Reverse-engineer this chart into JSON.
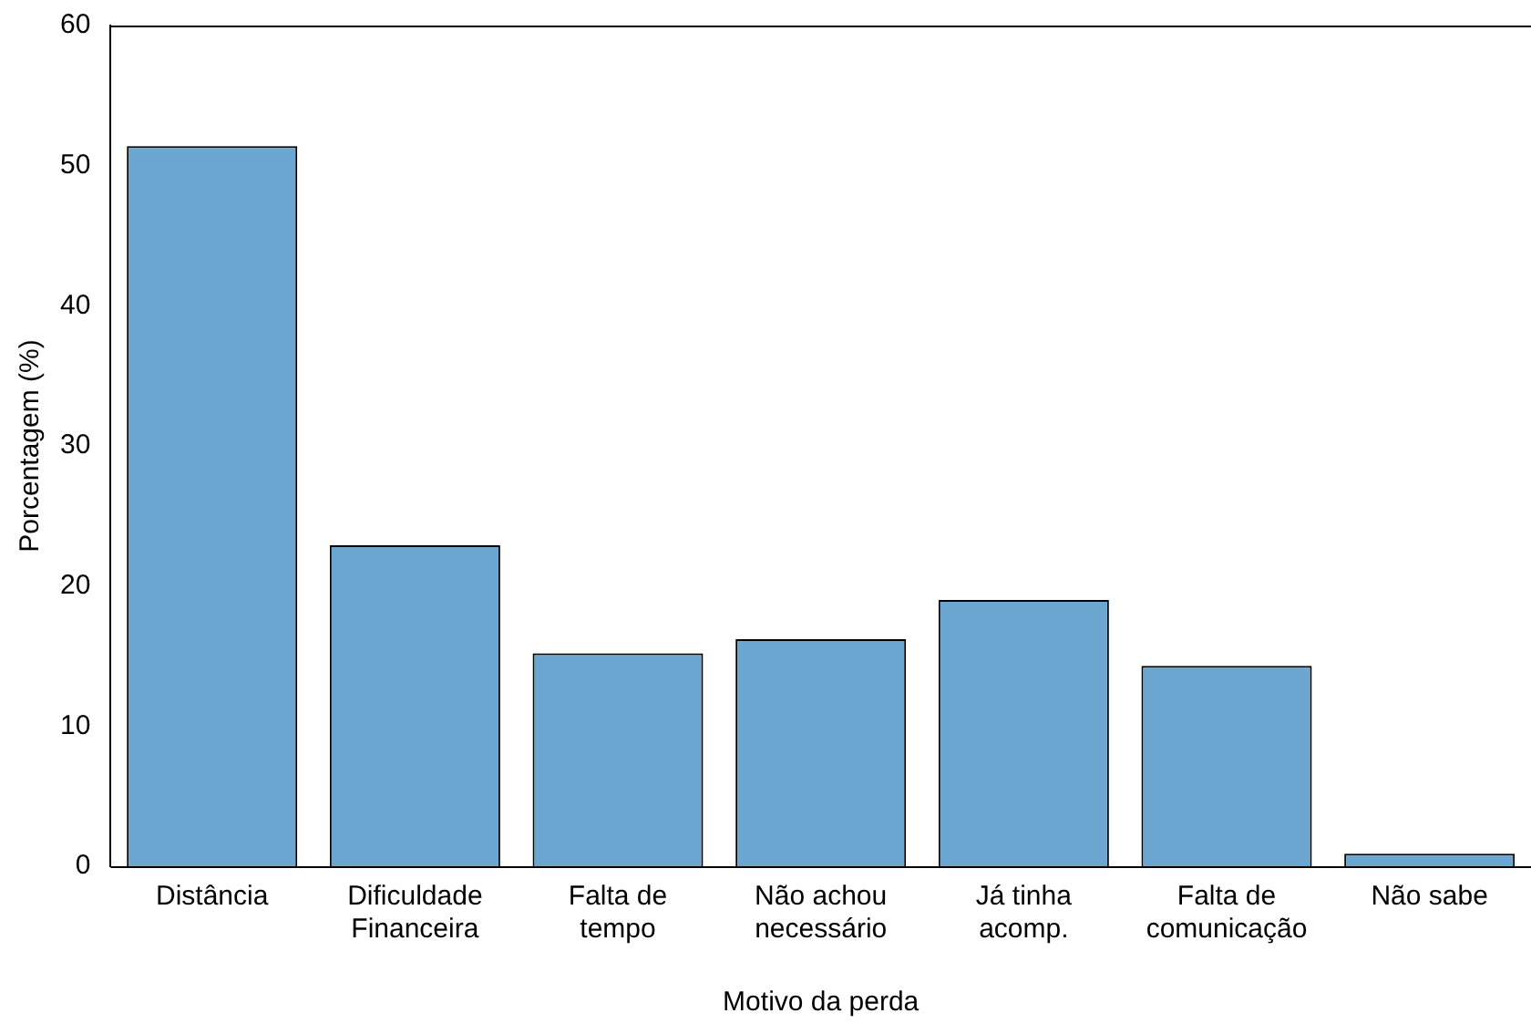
{
  "chart_data": {
    "type": "bar",
    "xlabel": "Motivo da perda",
    "ylabel": "Porcentagem (%)",
    "categories": [
      "Distância",
      "Dificuldade\nFinanceira",
      "Falta de\ntempo",
      "Não achou\nnecessário",
      "Já tinha\nacomp.",
      "Falta de\ncomunicação",
      "Não sabe"
    ],
    "values": [
      51.4,
      22.9,
      15.2,
      16.2,
      19.0,
      14.3,
      0.9
    ],
    "color": "#6aa6cf",
    "ylim": [
      0,
      60
    ],
    "yticks": [
      0,
      10,
      20,
      30,
      40,
      50,
      60
    ],
    "grid": false,
    "legend": false
  }
}
